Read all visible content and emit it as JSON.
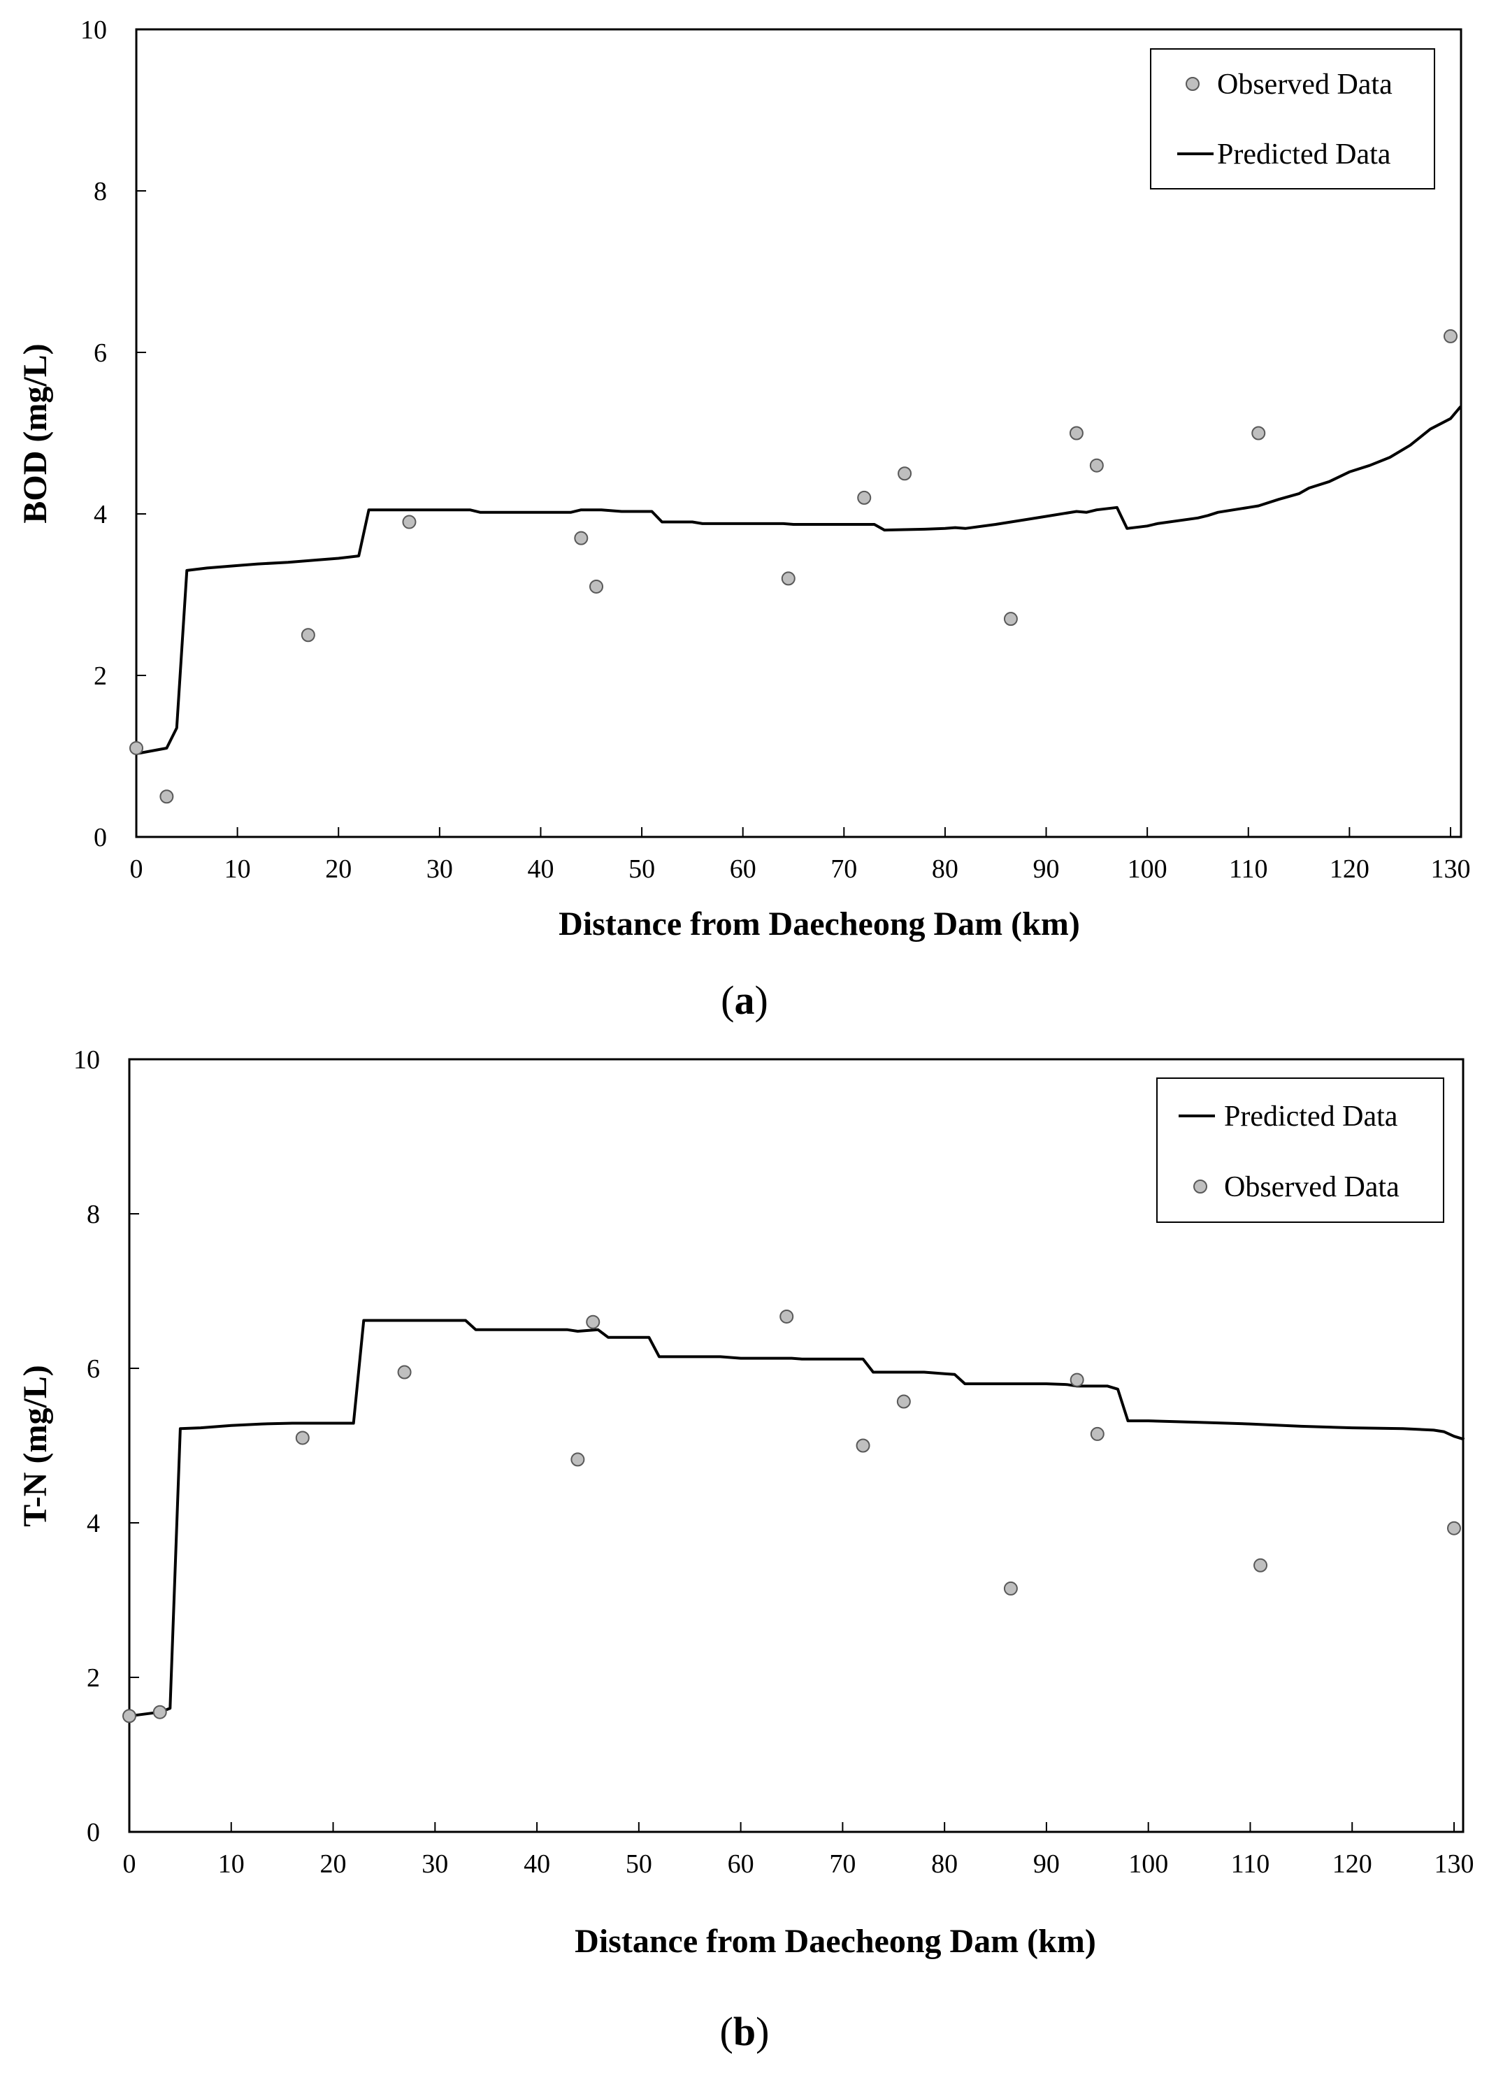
{
  "chart_data": [
    {
      "type": "line",
      "panel_label": "a",
      "title": "",
      "xlabel": "Distance from Daecheong Dam (km)",
      "ylabel": "BOD (mg/L)",
      "xlim": [
        0,
        131
      ],
      "ylim": [
        0,
        10
      ],
      "xticks": [
        0,
        10,
        20,
        30,
        40,
        50,
        60,
        70,
        80,
        90,
        100,
        110,
        120,
        130
      ],
      "yticks": [
        0,
        2,
        4,
        6,
        8,
        10
      ],
      "grid": false,
      "legend_position": "top-right",
      "legend_order": [
        "observed",
        "predicted"
      ],
      "series": [
        {
          "name": "Predicted Data",
          "kind": "line",
          "x": [
            0,
            3,
            4,
            5,
            7,
            10,
            12,
            15,
            18,
            20,
            22,
            23,
            25,
            30,
            33,
            34,
            38,
            43,
            44,
            46,
            48,
            50,
            51,
            52,
            55,
            56,
            60,
            64,
            65,
            70,
            73,
            74,
            78,
            80,
            81,
            82,
            85,
            88,
            90,
            93,
            94,
            95,
            97,
            98,
            100,
            101,
            105,
            106,
            107,
            110,
            111,
            113,
            115,
            116,
            118,
            120,
            122,
            124,
            126,
            127,
            128,
            130,
            131
          ],
          "values": [
            1.03,
            1.1,
            1.35,
            3.3,
            3.33,
            3.36,
            3.38,
            3.4,
            3.43,
            3.45,
            3.48,
            4.05,
            4.05,
            4.05,
            4.05,
            4.02,
            4.02,
            4.02,
            4.05,
            4.05,
            4.03,
            4.03,
            4.03,
            3.9,
            3.9,
            3.88,
            3.88,
            3.88,
            3.87,
            3.87,
            3.87,
            3.8,
            3.81,
            3.82,
            3.83,
            3.82,
            3.87,
            3.93,
            3.97,
            4.03,
            4.02,
            4.05,
            4.08,
            3.82,
            3.85,
            3.88,
            3.95,
            3.98,
            4.02,
            4.08,
            4.1,
            4.18,
            4.25,
            4.32,
            4.4,
            4.52,
            4.6,
            4.7,
            4.85,
            4.95,
            5.05,
            5.18,
            5.33
          ]
        },
        {
          "name": "Observed Data",
          "kind": "scatter",
          "x": [
            0,
            3,
            17,
            27,
            44,
            45.5,
            64.5,
            72,
            76,
            86.5,
            93,
            95,
            111,
            130
          ],
          "values": [
            1.1,
            0.5,
            2.5,
            3.9,
            3.7,
            3.1,
            3.2,
            4.2,
            4.5,
            2.7,
            5.0,
            4.6,
            5.0,
            6.2
          ]
        }
      ]
    },
    {
      "type": "line",
      "panel_label": "b",
      "title": "",
      "xlabel": "Distance from Daecheong Dam (km)",
      "ylabel": "T-N (mg/L)",
      "xlim": [
        0,
        131
      ],
      "ylim": [
        0,
        10
      ],
      "xticks": [
        0,
        10,
        20,
        30,
        40,
        50,
        60,
        70,
        80,
        90,
        100,
        110,
        120,
        130
      ],
      "yticks": [
        0,
        2,
        4,
        6,
        8,
        10
      ],
      "grid": false,
      "legend_position": "top-right",
      "legend_order": [
        "predicted",
        "observed"
      ],
      "series": [
        {
          "name": "Predicted Data",
          "kind": "line",
          "x": [
            0,
            3,
            4,
            5,
            7,
            10,
            13,
            16,
            20,
            22,
            23,
            26,
            30,
            33,
            34,
            38,
            43,
            44,
            46,
            47,
            50,
            51,
            52,
            55,
            58,
            60,
            65,
            66,
            70,
            72,
            73,
            78,
            80,
            81,
            82,
            86,
            90,
            92,
            93,
            96,
            97,
            98,
            100,
            105,
            110,
            115,
            120,
            125,
            128,
            129,
            130,
            131
          ],
          "values": [
            1.5,
            1.55,
            1.6,
            5.22,
            5.23,
            5.26,
            5.28,
            5.29,
            5.29,
            5.29,
            6.62,
            6.62,
            6.62,
            6.62,
            6.5,
            6.5,
            6.5,
            6.48,
            6.5,
            6.4,
            6.4,
            6.4,
            6.15,
            6.15,
            6.15,
            6.13,
            6.13,
            6.12,
            6.12,
            6.12,
            5.95,
            5.95,
            5.93,
            5.92,
            5.8,
            5.8,
            5.8,
            5.79,
            5.77,
            5.77,
            5.73,
            5.32,
            5.32,
            5.3,
            5.28,
            5.25,
            5.23,
            5.22,
            5.2,
            5.18,
            5.12,
            5.08
          ]
        },
        {
          "name": "Observed Data",
          "kind": "scatter",
          "x": [
            0,
            3,
            17,
            27,
            44,
            45.5,
            64.5,
            72,
            76,
            86.5,
            93,
            95,
            111,
            130
          ],
          "values": [
            1.5,
            1.55,
            5.1,
            5.95,
            4.82,
            6.6,
            6.67,
            5.0,
            5.57,
            3.15,
            5.85,
            5.15,
            3.45,
            3.93
          ]
        }
      ]
    }
  ]
}
